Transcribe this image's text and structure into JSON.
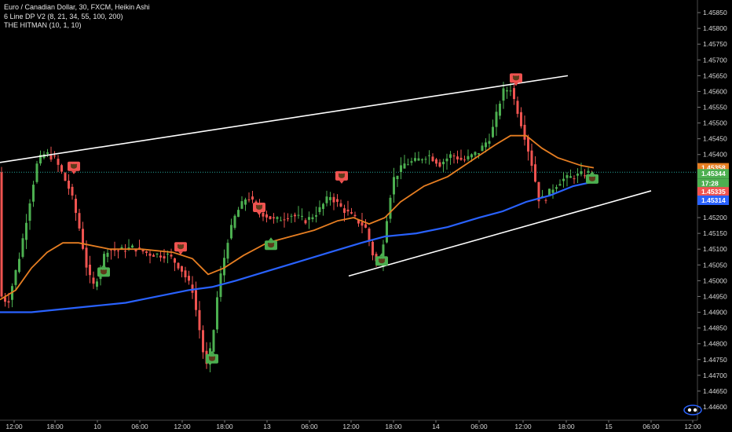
{
  "legend": {
    "line1": "Euro / Canadian Dollar, 30, FXCM, Heikin Ashi",
    "line2": "6 Line DP V2 (8, 21, 34, 55, 100, 200)",
    "line3": "THE HITMAN (10, 1, 10)"
  },
  "colors": {
    "background": "#000000",
    "bull": "#4caf50",
    "bear": "#ef5350",
    "ma_fast": "#e67e22",
    "ma_slow": "#2962ff",
    "trendline": "#ffffff",
    "last_price_line": "#26a69a",
    "sell_signal": "#ef5350",
    "buy_signal": "#4caf50"
  },
  "chart_data": {
    "type": "candlestick",
    "title": "",
    "x_ticks": [
      "12:00",
      "18:00",
      "10",
      "06:00",
      "12:00",
      "18:00",
      "13",
      "06:00",
      "12:00",
      "18:00",
      "14",
      "06:00",
      "12:00",
      "18:00",
      "15",
      "06:00",
      "12:00"
    ],
    "y_ticks": [
      "1.45850",
      "1.45800",
      "1.45750",
      "1.45700",
      "1.45650",
      "1.45600",
      "1.45550",
      "1.45500",
      "1.45450",
      "1.45400",
      "1.45350",
      "1.45300",
      "1.45250",
      "1.45200",
      "1.45150",
      "1.45100",
      "1.45050",
      "1.45000",
      "1.44950",
      "1.44900",
      "1.44850",
      "1.44800",
      "1.44750",
      "1.44700",
      "1.44650",
      "1.44600"
    ],
    "ylim": [
      1.4459,
      1.4588
    ],
    "price_keypoints": [
      [
        0,
        1.44955
      ],
      [
        10,
        1.4493
      ],
      [
        25,
        1.4508
      ],
      [
        40,
        1.4528
      ],
      [
        48,
        1.4538
      ],
      [
        58,
        1.45405
      ],
      [
        70,
        1.45385
      ],
      [
        78,
        1.45345
      ],
      [
        90,
        1.4528
      ],
      [
        100,
        1.4518
      ],
      [
        112,
        1.4502
      ],
      [
        120,
        1.4498
      ],
      [
        135,
        1.451
      ],
      [
        150,
        1.45095
      ],
      [
        170,
        1.45105
      ],
      [
        190,
        1.45085
      ],
      [
        215,
        1.4508
      ],
      [
        230,
        1.4504
      ],
      [
        245,
        1.4497
      ],
      [
        255,
        1.4483
      ],
      [
        262,
        1.4472
      ],
      [
        270,
        1.448
      ],
      [
        278,
        1.4498
      ],
      [
        290,
        1.4513
      ],
      [
        300,
        1.4521
      ],
      [
        315,
        1.4527
      ],
      [
        330,
        1.4522
      ],
      [
        350,
        1.4519
      ],
      [
        370,
        1.4521
      ],
      [
        390,
        1.4519
      ],
      [
        405,
        1.4522
      ],
      [
        420,
        1.4527
      ],
      [
        435,
        1.4523
      ],
      [
        450,
        1.452
      ],
      [
        465,
        1.4517
      ],
      [
        475,
        1.4508
      ],
      [
        483,
        1.4504
      ],
      [
        490,
        1.4516
      ],
      [
        500,
        1.4532
      ],
      [
        515,
        1.4537
      ],
      [
        530,
        1.4538
      ],
      [
        545,
        1.454
      ],
      [
        560,
        1.4537
      ],
      [
        575,
        1.454
      ],
      [
        590,
        1.4538
      ],
      [
        610,
        1.4541
      ],
      [
        625,
        1.4546
      ],
      [
        640,
        1.456
      ],
      [
        650,
        1.4561
      ],
      [
        660,
        1.4553
      ],
      [
        670,
        1.4544
      ],
      [
        678,
        1.4536
      ],
      [
        686,
        1.4526
      ],
      [
        694,
        1.4526
      ],
      [
        702,
        1.4529
      ],
      [
        715,
        1.4532
      ],
      [
        730,
        1.4533
      ],
      [
        745,
        1.4534
      ],
      [
        756,
        1.45344
      ]
    ],
    "series": [
      {
        "name": "",
        "kind": "ma",
        "color": "ma_fast",
        "points": [
          [
            0,
            1.4494
          ],
          [
            20,
            1.4497
          ],
          [
            40,
            1.4504
          ],
          [
            60,
            1.4509
          ],
          [
            80,
            1.4512
          ],
          [
            100,
            1.4512
          ],
          [
            140,
            1.451
          ],
          [
            180,
            1.451
          ],
          [
            220,
            1.4509
          ],
          [
            245,
            1.4507
          ],
          [
            265,
            1.4502
          ],
          [
            285,
            1.4504
          ],
          [
            310,
            1.4508
          ],
          [
            340,
            1.4512
          ],
          [
            370,
            1.4514
          ],
          [
            400,
            1.4516
          ],
          [
            430,
            1.4519
          ],
          [
            450,
            1.452
          ],
          [
            470,
            1.4518
          ],
          [
            490,
            1.452
          ],
          [
            510,
            1.4525
          ],
          [
            540,
            1.453
          ],
          [
            570,
            1.4533
          ],
          [
            600,
            1.4538
          ],
          [
            630,
            1.4543
          ],
          [
            650,
            1.4546
          ],
          [
            670,
            1.4546
          ],
          [
            690,
            1.4542
          ],
          [
            710,
            1.4539
          ],
          [
            740,
            1.45365
          ],
          [
            756,
            1.45358
          ]
        ]
      },
      {
        "name": "",
        "kind": "ma",
        "color": "ma_slow",
        "points": [
          [
            0,
            1.449
          ],
          [
            40,
            1.449
          ],
          [
            80,
            1.4491
          ],
          [
            120,
            1.4492
          ],
          [
            160,
            1.4493
          ],
          [
            200,
            1.4495
          ],
          [
            240,
            1.4497
          ],
          [
            270,
            1.4498
          ],
          [
            300,
            1.45
          ],
          [
            340,
            1.4503
          ],
          [
            380,
            1.4506
          ],
          [
            420,
            1.4509
          ],
          [
            460,
            1.4512
          ],
          [
            490,
            1.4514
          ],
          [
            530,
            1.4515
          ],
          [
            570,
            1.4517
          ],
          [
            610,
            1.452
          ],
          [
            640,
            1.4522
          ],
          [
            670,
            1.4525
          ],
          [
            700,
            1.4527
          ],
          [
            730,
            1.453
          ],
          [
            756,
            1.45314
          ]
        ]
      }
    ],
    "trendlines": [
      {
        "from": [
          0,
          1.45375
        ],
        "to": [
          723,
          1.4565
        ]
      },
      {
        "from": [
          444,
          1.45015
        ],
        "to": [
          829,
          1.45285
        ]
      }
    ],
    "signals": [
      {
        "type": "sell",
        "x": 94,
        "price": 1.4536
      },
      {
        "type": "buy",
        "x": 132,
        "price": 1.45025
      },
      {
        "type": "sell",
        "x": 230,
        "price": 1.45105
      },
      {
        "type": "buy",
        "x": 270,
        "price": 1.4475
      },
      {
        "type": "sell",
        "x": 330,
        "price": 1.4523
      },
      {
        "type": "buy",
        "x": 345,
        "price": 1.4511
      },
      {
        "type": "sell",
        "x": 435,
        "price": 1.4533
      },
      {
        "type": "buy",
        "x": 486,
        "price": 1.4506
      },
      {
        "type": "sell",
        "x": 657,
        "price": 1.4564
      },
      {
        "type": "buy",
        "x": 754,
        "price": 1.4532
      }
    ],
    "price_labels": [
      {
        "text": "1.45358",
        "price": 1.45358,
        "color": "#e67e22"
      },
      {
        "text": "1.45344",
        "price": 1.45339,
        "color": "#4caf50"
      },
      {
        "text": "17:28",
        "price": 1.45309,
        "color": "#4caf50"
      },
      {
        "text": "1.45335",
        "price": 1.45282,
        "color": "#ef5350"
      },
      {
        "text": "1.45314",
        "price": 1.45255,
        "color": "#2962ff"
      }
    ],
    "last_price": 1.45344
  }
}
